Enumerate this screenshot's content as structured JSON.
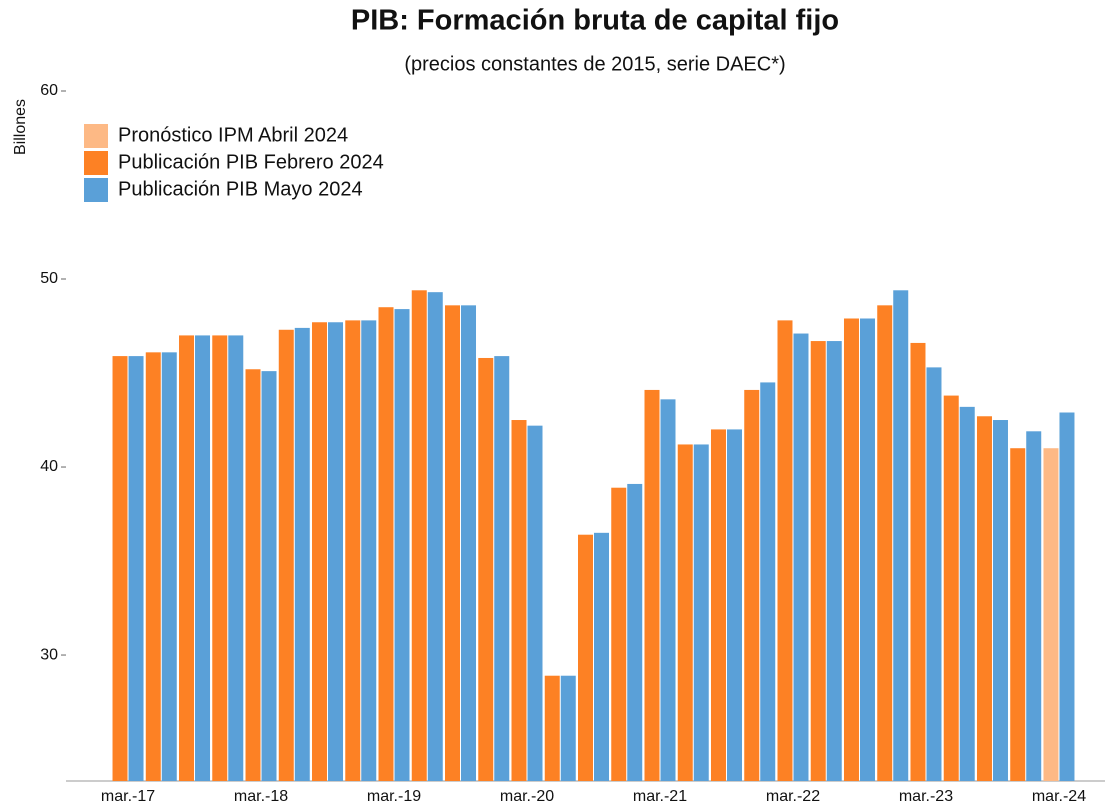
{
  "chart_data": {
    "type": "bar",
    "title": "PIB: Formación bruta de capital fijo",
    "subtitle": "(precios constantes de 2015, serie DAEC*)",
    "y_label": "Billones",
    "categories": [
      "mar.-17",
      null,
      null,
      null,
      "mar.-18",
      null,
      null,
      null,
      "mar.-19",
      null,
      null,
      null,
      "mar.-20",
      null,
      null,
      null,
      "mar.-21",
      null,
      null,
      null,
      "mar.-22",
      null,
      null,
      null,
      "mar.-23",
      null,
      null,
      null,
      "mar.-24"
    ],
    "series": [
      {
        "name": "Pronóstico IPM Abril 2024",
        "color": "#fdb985",
        "values": [
          null,
          null,
          null,
          null,
          null,
          null,
          null,
          null,
          null,
          null,
          null,
          null,
          null,
          null,
          null,
          null,
          null,
          null,
          null,
          null,
          null,
          null,
          null,
          null,
          null,
          null,
          null,
          null,
          41.0
        ]
      },
      {
        "name": "Publicación PIB Febrero 2024",
        "color": "#fd8124",
        "values": [
          45.9,
          46.1,
          47.0,
          47.0,
          45.2,
          47.3,
          47.7,
          47.8,
          48.5,
          49.4,
          48.6,
          45.8,
          42.5,
          28.9,
          36.4,
          38.9,
          44.1,
          41.2,
          42.0,
          44.1,
          47.8,
          46.7,
          47.9,
          48.6,
          46.6,
          43.8,
          42.7,
          41.0,
          null
        ]
      },
      {
        "name": "Publicación PIB Mayo 2024",
        "color": "#5aa0d8",
        "values": [
          45.9,
          46.1,
          47.0,
          47.0,
          45.1,
          47.4,
          47.7,
          47.8,
          48.4,
          49.3,
          48.6,
          45.9,
          42.2,
          28.9,
          36.5,
          39.1,
          43.6,
          41.2,
          42.0,
          44.5,
          47.1,
          46.7,
          47.9,
          49.4,
          45.3,
          43.2,
          42.5,
          41.9,
          42.9
        ]
      }
    ],
    "ylim": [
      23.3,
      60
    ],
    "yticks": [
      30,
      40,
      50,
      60
    ],
    "grid": false,
    "legend": "top-left"
  }
}
